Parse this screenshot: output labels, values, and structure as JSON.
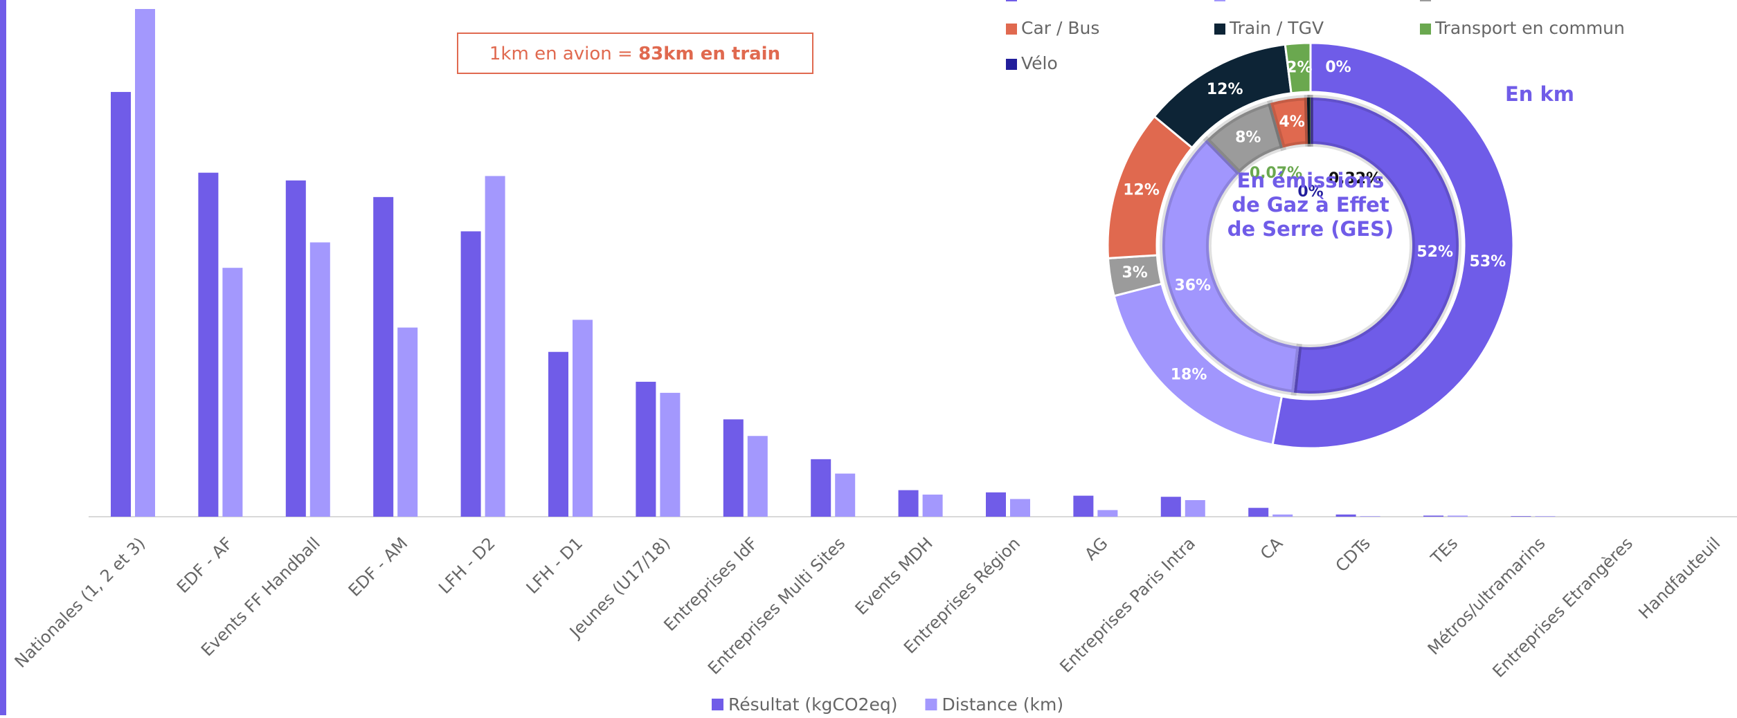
{
  "chart_data": [
    {
      "type": "bar",
      "categories": [
        "Nationales (1, 2 et 3)",
        "EDF - AF",
        "Events FF Handball",
        "EDF - AM",
        "LFH - D2",
        "LFH - D1",
        "Jeunes (U17/18)",
        "Entreprises IdF",
        "Entreprises Multi Sites",
        "Events MDH",
        "Entreprises Région",
        "AG",
        "Entreprises Paris Intra",
        "CA",
        "CDTs",
        "TEs",
        "Métros/ultramarins",
        "Entreprises Etrangères",
        "Handfauteuil"
      ],
      "series": [
        {
          "name": "Résultat (kgCO2eq)",
          "color": "#705ce8",
          "values": [
            384,
            311,
            304,
            289,
            258,
            149,
            122,
            88,
            52,
            24,
            22,
            19,
            18,
            8,
            2,
            1,
            0.5,
            0,
            0
          ]
        },
        {
          "name": "Distance (km)",
          "color": "#a398fd",
          "values": [
            459,
            225,
            248,
            171,
            308,
            178,
            112,
            73,
            39,
            20,
            16,
            6,
            15,
            2,
            0.5,
            1,
            0.5,
            0,
            0
          ]
        }
      ],
      "annotation": {
        "text": "1km en avion = ",
        "bold": "83km en train",
        "color": "#e0694f"
      }
    },
    {
      "type": "pie",
      "categories": [
        null,
        null,
        null,
        "Car / Bus",
        "Train / TGV",
        "Transport en commun",
        "Vélo"
      ],
      "colors": [
        "#6f5ce8",
        "#a196fd",
        "#9b9b9b",
        "#e0694f",
        "#0d2436",
        "#6aa84f",
        "#221e9b"
      ],
      "series": [
        {
          "name": "En km",
          "values": [
            53,
            18,
            3,
            12,
            12,
            2,
            0
          ],
          "value_labels": [
            "53%",
            "18%",
            "3%",
            "12%",
            "12%",
            "2%",
            "0%"
          ]
        },
        {
          "values": [
            52,
            36,
            8,
            4,
            0.32,
            0.07,
            0
          ],
          "value_labels": [
            "52%",
            "36%",
            "8%",
            "4%",
            "0,32%",
            "0,07%",
            "0%"
          ]
        }
      ],
      "center_label": "En émissions de Gaz à Effet de Serre (GES)"
    }
  ]
}
